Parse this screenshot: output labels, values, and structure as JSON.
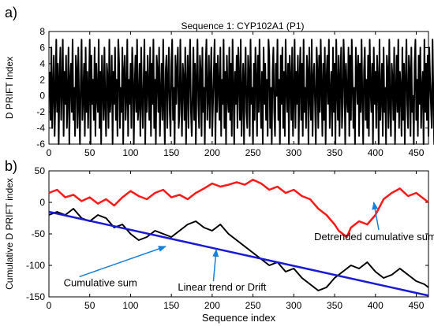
{
  "panel_labels": {
    "a": "a)",
    "b": "b)"
  },
  "chart_data": [
    {
      "type": "line",
      "title": "Sequence 1: CYP102A1 (P1)",
      "xlabel": "",
      "ylabel": "D PRIFT Index",
      "xlim": [
        0,
        465
      ],
      "ylim": [
        -6,
        8
      ],
      "xticks": [
        0,
        50,
        100,
        150,
        200,
        250,
        300,
        350,
        400,
        450
      ],
      "yticks": [
        -6,
        -4,
        -2,
        0,
        2,
        4,
        6,
        8
      ],
      "grid": false,
      "series": [
        {
          "color": "#000000",
          "x_start": 1,
          "x_step": 1,
          "y": [
            3,
            -3,
            6,
            -4,
            1,
            5,
            -5,
            0,
            7,
            -2,
            4,
            -6,
            2,
            6,
            -3,
            1,
            7,
            -5,
            3,
            -1,
            5,
            -4,
            0,
            6,
            -6,
            2,
            4,
            -2,
            7,
            -3,
            1,
            -5,
            5,
            3,
            -4,
            6,
            -1,
            -6,
            2,
            7,
            -3,
            0,
            4,
            -5,
            6,
            -2,
            3,
            -4,
            1,
            7,
            -6,
            5,
            -1,
            2,
            -3,
            6,
            -5,
            4,
            0,
            -2,
            7,
            -4,
            3,
            -6,
            5,
            1,
            -3,
            6,
            -1,
            -5,
            4,
            2,
            -4,
            7,
            -2,
            0,
            5,
            -6,
            3,
            -1,
            6,
            -3,
            2,
            -5,
            7,
            4,
            -4,
            1,
            -2,
            6,
            -6,
            3,
            5,
            -3,
            0,
            7,
            -5,
            2,
            -1,
            4,
            -4,
            6,
            3,
            -6,
            1,
            5,
            -2,
            7,
            -3,
            -1,
            4,
            -5,
            6,
            0,
            -4,
            2,
            7,
            -6,
            3,
            -2,
            5,
            1,
            -3,
            6,
            -5,
            4,
            -1,
            7,
            -4,
            2,
            -6,
            5,
            3,
            -2,
            6,
            -5,
            0,
            4,
            -3,
            7,
            -1,
            -6,
            3,
            5,
            -4,
            2,
            6,
            -2,
            -5,
            4,
            7,
            -3,
            1,
            -6,
            5,
            -1,
            3,
            6,
            -4,
            -2,
            7,
            0,
            -5,
            4,
            2,
            -3,
            6,
            -6,
            1,
            5,
            -4,
            3,
            7,
            -2,
            -5,
            0,
            6,
            -3,
            4,
            -6,
            2,
            7,
            -1,
            -4,
            5,
            3,
            -5,
            6,
            -2,
            1,
            -6,
            4,
            7,
            -3,
            0,
            5,
            -4,
            2,
            6,
            -5,
            -1,
            3,
            7,
            -6,
            4,
            -2,
            5,
            1,
            -3,
            6,
            -5,
            2,
            -1,
            7,
            -4,
            3,
            -6,
            5,
            0,
            -2,
            6,
            -3,
            4,
            -5,
            7,
            1,
            -6,
            3,
            -1,
            5,
            -4,
            6,
            2,
            -3,
            7,
            -5,
            0,
            4,
            -6,
            2,
            6,
            -2,
            -4,
            5,
            3,
            -5,
            7,
            -1,
            1,
            -6,
            4,
            -3,
            6,
            2,
            -5,
            5,
            -2,
            7,
            0,
            -4,
            3,
            -6,
            6,
            -1,
            4,
            -3,
            2,
            -5,
            7,
            5,
            -4,
            1,
            -6,
            3,
            6,
            -2,
            -5,
            4,
            0,
            7,
            -3,
            2,
            -6,
            5,
            -1,
            6,
            -4,
            3,
            -5,
            7,
            1,
            -2,
            4,
            -6,
            5,
            2,
            -3,
            6,
            -5,
            0,
            7,
            -4,
            3,
            -1,
            5,
            -6,
            2,
            6,
            -3,
            4,
            -5,
            7,
            -2,
            1,
            -4,
            5,
            3,
            -6,
            6,
            0,
            -3,
            7,
            -5,
            2,
            4,
            -1,
            -6,
            6,
            3,
            -4,
            5,
            -2,
            7,
            1,
            -5,
            4,
            -3,
            6,
            -6,
            2,
            5,
            -1,
            7,
            -4,
            0,
            3,
            -5,
            6,
            -2,
            4,
            -6,
            7,
            1,
            -3,
            5,
            -5,
            2,
            6,
            -4,
            -1,
            7,
            3,
            -6,
            4,
            0,
            -2,
            6,
            -5,
            5,
            -3,
            7,
            2,
            -4,
            1,
            -6,
            6,
            3,
            -1,
            5,
            -5,
            4,
            -2,
            7,
            0,
            -6,
            3,
            6,
            -3,
            2,
            -4,
            5,
            -5,
            7,
            1,
            -2,
            4,
            -6,
            6,
            -1,
            3,
            -4,
            5,
            2,
            -6,
            7,
            -3,
            0,
            4,
            -5,
            6,
            -2,
            1,
            -6,
            5,
            3,
            -4,
            7,
            -1,
            -5,
            4,
            2,
            -3,
            6,
            -6,
            0,
            5,
            -2,
            7,
            -4,
            3,
            1,
            -5,
            6,
            -3,
            4,
            -6,
            2,
            7,
            -1,
            -4,
            5,
            3,
            -5,
            6,
            -2,
            0,
            -6,
            4,
            7,
            -3,
            2,
            -5,
            5,
            -1,
            6,
            -4,
            1,
            3,
            -6,
            7,
            -2,
            4,
            -3,
            5,
            -5,
            6,
            2,
            -1,
            -4,
            7,
            0,
            -6,
            3,
            5,
            -3,
            6,
            -2,
            4,
            -5
          ]
        }
      ]
    },
    {
      "type": "line",
      "title": "",
      "xlabel": "Sequence index",
      "ylabel": "Cumulative D PRIFT index",
      "xlim": [
        0,
        465
      ],
      "ylim": [
        -150,
        50
      ],
      "xticks": [
        0,
        50,
        100,
        150,
        200,
        250,
        300,
        350,
        400,
        450
      ],
      "yticks": [
        -150,
        -100,
        -50,
        0,
        50
      ],
      "grid": false,
      "series": [
        {
          "name": "Detrended cumulative sum",
          "color": "#ff1a1a",
          "points": [
            [
              0,
              15
            ],
            [
              10,
              20
            ],
            [
              20,
              8
            ],
            [
              30,
              12
            ],
            [
              40,
              2
            ],
            [
              50,
              8
            ],
            [
              60,
              -2
            ],
            [
              70,
              5
            ],
            [
              80,
              -5
            ],
            [
              90,
              8
            ],
            [
              100,
              18
            ],
            [
              110,
              10
            ],
            [
              120,
              5
            ],
            [
              130,
              15
            ],
            [
              140,
              20
            ],
            [
              150,
              8
            ],
            [
              160,
              12
            ],
            [
              170,
              5
            ],
            [
              180,
              15
            ],
            [
              190,
              22
            ],
            [
              200,
              30
            ],
            [
              210,
              25
            ],
            [
              220,
              28
            ],
            [
              230,
              32
            ],
            [
              240,
              28
            ],
            [
              250,
              36
            ],
            [
              260,
              30
            ],
            [
              270,
              20
            ],
            [
              280,
              25
            ],
            [
              290,
              15
            ],
            [
              300,
              20
            ],
            [
              310,
              10
            ],
            [
              320,
              5
            ],
            [
              330,
              -10
            ],
            [
              340,
              -20
            ],
            [
              350,
              -35
            ],
            [
              355,
              -45
            ],
            [
              360,
              -50
            ],
            [
              365,
              -55
            ],
            [
              370,
              -40
            ],
            [
              380,
              -30
            ],
            [
              390,
              -35
            ],
            [
              400,
              -20
            ],
            [
              410,
              5
            ],
            [
              420,
              15
            ],
            [
              430,
              22
            ],
            [
              440,
              10
            ],
            [
              450,
              15
            ],
            [
              460,
              5
            ],
            [
              465,
              0
            ]
          ]
        },
        {
          "name": "Cumulative sum",
          "color": "#000000",
          "points": [
            [
              0,
              -20
            ],
            [
              10,
              -15
            ],
            [
              20,
              -20
            ],
            [
              30,
              -10
            ],
            [
              40,
              -25
            ],
            [
              50,
              -30
            ],
            [
              60,
              -20
            ],
            [
              70,
              -25
            ],
            [
              80,
              -40
            ],
            [
              90,
              -35
            ],
            [
              100,
              -50
            ],
            [
              110,
              -60
            ],
            [
              120,
              -55
            ],
            [
              130,
              -45
            ],
            [
              140,
              -50
            ],
            [
              150,
              -55
            ],
            [
              160,
              -45
            ],
            [
              170,
              -35
            ],
            [
              180,
              -30
            ],
            [
              190,
              -40
            ],
            [
              200,
              -45
            ],
            [
              210,
              -35
            ],
            [
              220,
              -50
            ],
            [
              230,
              -60
            ],
            [
              240,
              -70
            ],
            [
              250,
              -80
            ],
            [
              260,
              -90
            ],
            [
              270,
              -100
            ],
            [
              280,
              -95
            ],
            [
              290,
              -110
            ],
            [
              300,
              -105
            ],
            [
              310,
              -120
            ],
            [
              320,
              -130
            ],
            [
              330,
              -140
            ],
            [
              340,
              -135
            ],
            [
              350,
              -120
            ],
            [
              360,
              -110
            ],
            [
              370,
              -100
            ],
            [
              380,
              -105
            ],
            [
              390,
              -95
            ],
            [
              400,
              -110
            ],
            [
              410,
              -120
            ],
            [
              420,
              -115
            ],
            [
              430,
              -105
            ],
            [
              440,
              -115
            ],
            [
              450,
              -125
            ],
            [
              460,
              -130
            ],
            [
              465,
              -135
            ]
          ]
        },
        {
          "name": "Linear trend or Drift",
          "color": "#1a1ad6",
          "points": [
            [
              0,
              -15
            ],
            [
              465,
              -148
            ]
          ]
        }
      ],
      "annotations": [
        {
          "text": "Cumulative sum",
          "data": [
            18,
            -133
          ],
          "target": [
            143,
            -70
          ]
        },
        {
          "text": "Linear trend or Drift",
          "data": [
            158,
            -140
          ],
          "target": [
            205,
            -75
          ]
        },
        {
          "text": "Detrended cumulative sum",
          "data": [
            325,
            -60
          ],
          "target": [
            398,
            0
          ]
        }
      ]
    }
  ]
}
